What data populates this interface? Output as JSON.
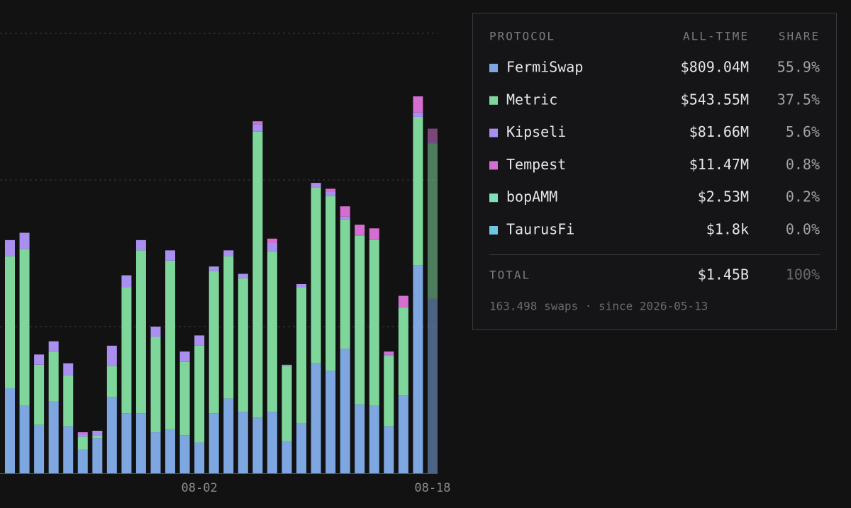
{
  "chart_data": {
    "type": "stacked_bar",
    "categories": [
      null,
      null,
      null,
      null,
      null,
      null,
      null,
      null,
      null,
      null,
      null,
      null,
      null,
      "08-02",
      null,
      null,
      null,
      null,
      null,
      null,
      null,
      null,
      null,
      null,
      null,
      null,
      null,
      null,
      null,
      "08-18"
    ],
    "series": [
      {
        "name": "FermiSwap",
        "color": "#7ea6e0",
        "values": [
          0.58,
          0.46,
          0.33,
          0.49,
          0.32,
          0.16,
          0.24,
          0.52,
          0.41,
          0.41,
          0.28,
          0.3,
          0.26,
          0.21,
          0.41,
          0.51,
          0.42,
          0.38,
          0.42,
          0.22,
          0.34,
          0.75,
          0.7,
          0.85,
          0.47,
          0.46,
          0.32,
          0.53,
          1.42,
          1.19
        ]
      },
      {
        "name": "Metric",
        "color": "#7fd69a",
        "values": [
          0.9,
          1.07,
          0.41,
          0.34,
          0.35,
          0.09,
          0.02,
          0.21,
          0.86,
          1.11,
          0.65,
          1.15,
          0.5,
          0.66,
          0.97,
          0.97,
          0.91,
          1.95,
          1.09,
          0.51,
          0.93,
          1.2,
          1.19,
          0.88,
          1.15,
          1.13,
          0.48,
          0.6,
          1.01,
          1.06
        ]
      },
      {
        "name": "Kipseli",
        "color": "#a88ff0",
        "values": [
          0.11,
          0.11,
          0.07,
          0.07,
          0.08,
          0.02,
          0.03,
          0.14,
          0.08,
          0.07,
          0.07,
          0.07,
          0.07,
          0.07,
          0.03,
          0.04,
          0.03,
          0.05,
          0.06,
          0.01,
          0.02,
          0.03,
          0.03,
          0.02,
          0.005,
          0,
          0.01,
          0,
          0.03,
          0.01
        ]
      },
      {
        "name": "Tempest",
        "color": "#d46fd1",
        "values": [
          0,
          0,
          0,
          0,
          0,
          0.01,
          0,
          0,
          0,
          0,
          0,
          0,
          0,
          0,
          0,
          0,
          0,
          0.02,
          0.03,
          0,
          0,
          0,
          0.02,
          0.07,
          0.07,
          0.08,
          0.02,
          0.08,
          0.11,
          0.09
        ]
      }
    ],
    "ylim": [
      0,
      3.227
    ],
    "gridlines": [
      1,
      2,
      3
    ]
  },
  "table": {
    "headers": [
      "PROTOCOL",
      "ALL-TIME",
      "SHARE"
    ],
    "rows": [
      {
        "color": "#7ea6e0",
        "name": "FermiSwap",
        "all_time": "$809.04M",
        "share": "55.9%"
      },
      {
        "color": "#7fd69a",
        "name": "Metric",
        "all_time": "$543.55M",
        "share": "37.5%"
      },
      {
        "color": "#a88ff0",
        "name": "Kipseli",
        "all_time": "$81.66M",
        "share": "5.6%"
      },
      {
        "color": "#d46fd1",
        "name": "Tempest",
        "all_time": "$11.47M",
        "share": "0.8%"
      },
      {
        "color": "#7ee0b8",
        "name": "bopAMM",
        "all_time": "$2.53M",
        "share": "0.2%"
      },
      {
        "color": "#6cc8e0",
        "name": "TaurusFi",
        "all_time": "$1.8k",
        "share": "0.0%"
      }
    ],
    "total": {
      "label": "TOTAL",
      "all_time": "$1.45B",
      "share": "100%"
    },
    "footer": "163.498 swaps · since 2026-05-13"
  }
}
